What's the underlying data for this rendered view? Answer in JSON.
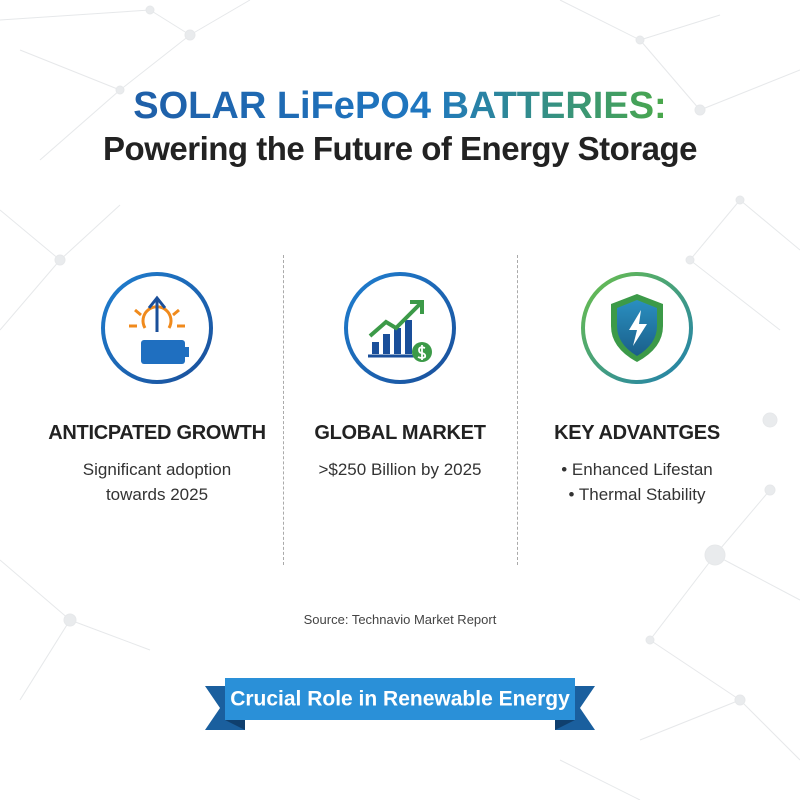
{
  "header": {
    "title": "SOLAR LiFePO4 BATTERIES:",
    "subtitle": "Powering the Future of Energy Storage"
  },
  "columns": [
    {
      "heading": "ANTICPATED GROWTH",
      "lines": [
        "Significant adoption",
        "towards 2025"
      ]
    },
    {
      "heading": "GLOBAL MARKET",
      "lines": [
        ">$250 Billion by 2025"
      ]
    },
    {
      "heading": "KEY ADVANTGES",
      "lines": [
        "• Enhanced Lifestan",
        "• Thermal Stability"
      ]
    }
  ],
  "source": "Source: Technavio Market Report",
  "banner": "Crucial Role in Renewable Energy"
}
